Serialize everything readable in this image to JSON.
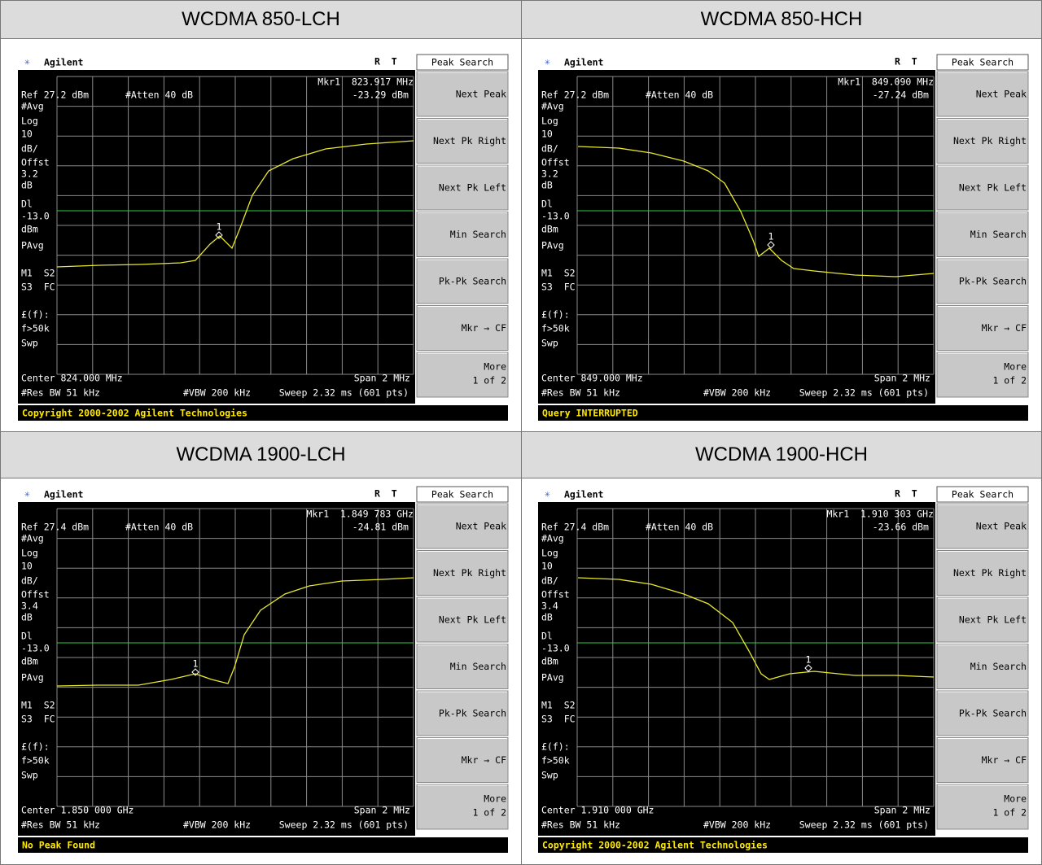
{
  "panels": [
    {
      "title": "WCDMA 850-LCH",
      "screen": {
        "brand": "Agilent",
        "indicators": "R  T",
        "menu_title": "Peak Search",
        "softkeys": [
          "Next Peak",
          "Next Pk Right",
          "Next Pk Left",
          "Min Search",
          "Pk-Pk Search",
          "Mkr → CF"
        ],
        "more": "More",
        "more_page": "1 of 2",
        "marker_freq": "Mkr1  823.917 MHz",
        "ref": "Ref 27.2 dBm",
        "atten": "#Atten 40 dB",
        "marker_level": "-23.29 dBm",
        "side_labels": [
          "#Avg",
          "Log",
          "10",
          "dB/",
          "Offst",
          "3.2",
          "dB",
          "Dl",
          "-13.0",
          "dBm",
          "PAvg",
          "M1  S2",
          "S3  FC",
          "£(f):",
          "f>50k",
          "Swp"
        ],
        "marker_label": "1",
        "center": "Center 824.000 MHz",
        "span": "Span 2 MHz",
        "res_bw": "#Res BW 51 kHz",
        "vbw": "#VBW 200 kHz",
        "sweep": "Sweep 2.32 ms (601 pts)",
        "status": "Copyright 2000-2002 Agilent Technologies"
      }
    },
    {
      "title": "WCDMA 850-HCH",
      "screen": {
        "brand": "Agilent",
        "indicators": "R  T",
        "menu_title": "Peak Search",
        "softkeys": [
          "Next Peak",
          "Next Pk Right",
          "Next Pk Left",
          "Min Search",
          "Pk-Pk Search",
          "Mkr → CF"
        ],
        "more": "More",
        "more_page": "1 of 2",
        "marker_freq": "Mkr1  849.090 MHz",
        "ref": "Ref 27.2 dBm",
        "atten": "#Atten 40 dB",
        "marker_level": "-27.24 dBm",
        "side_labels": [
          "#Avg",
          "Log",
          "10",
          "dB/",
          "Offst",
          "3.2",
          "dB",
          "Dl",
          "-13.0",
          "dBm",
          "PAvg",
          "M1  S2",
          "S3  FC",
          "£(f):",
          "f>50k",
          "Swp"
        ],
        "marker_label": "1",
        "center": "Center 849.000 MHz",
        "span": "Span 2 MHz",
        "res_bw": "#Res BW 51 kHz",
        "vbw": "#VBW 200 kHz",
        "sweep": "Sweep 2.32 ms (601 pts)",
        "status": "Query INTERRUPTED"
      }
    },
    {
      "title": "WCDMA 1900-LCH",
      "screen": {
        "brand": "Agilent",
        "indicators": "R  T",
        "menu_title": "Peak Search",
        "softkeys": [
          "Next Peak",
          "Next Pk Right",
          "Next Pk Left",
          "Min Search",
          "Pk-Pk Search",
          "Mkr → CF"
        ],
        "more": "More",
        "more_page": "1 of 2",
        "marker_freq": "Mkr1  1.849 783 GHz",
        "ref": "Ref 27.4 dBm",
        "atten": "#Atten 40 dB",
        "marker_level": "-24.81 dBm",
        "side_labels": [
          "#Avg",
          "Log",
          "10",
          "dB/",
          "Offst",
          "3.4",
          "dB",
          "Dl",
          "-13.0",
          "dBm",
          "PAvg",
          "M1  S2",
          "S3  FC",
          "£(f):",
          "f>50k",
          "Swp"
        ],
        "marker_label": "1",
        "center": "Center 1.850 000 GHz",
        "span": "Span 2 MHz",
        "res_bw": "#Res BW 51 kHz",
        "vbw": "#VBW 200 kHz",
        "sweep": "Sweep 2.32 ms (601 pts)",
        "status": "No Peak Found"
      }
    },
    {
      "title": "WCDMA 1900-HCH",
      "screen": {
        "brand": "Agilent",
        "indicators": "R  T",
        "menu_title": "Peak Search",
        "softkeys": [
          "Next Peak",
          "Next Pk Right",
          "Next Pk Left",
          "Min Search",
          "Pk-Pk Search",
          "Mkr → CF"
        ],
        "more": "More",
        "more_page": "1 of 2",
        "marker_freq": "Mkr1  1.910 303 GHz",
        "ref": "Ref 27.4 dBm",
        "atten": "#Atten 40 dB",
        "marker_level": "-23.66 dBm",
        "side_labels": [
          "#Avg",
          "Log",
          "10",
          "dB/",
          "Offst",
          "3.4",
          "dB",
          "Dl",
          "-13.0",
          "dBm",
          "PAvg",
          "M1  S2",
          "S3  FC",
          "£(f):",
          "f>50k",
          "Swp"
        ],
        "marker_label": "1",
        "center": "Center 1.910 000 GHz",
        "span": "Span 2 MHz",
        "res_bw": "#Res BW 51 kHz",
        "vbw": "#VBW 200 kHz",
        "sweep": "Sweep 2.32 ms (601 pts)",
        "status": "Copyright 2000-2002 Agilent Technologies"
      }
    }
  ]
}
